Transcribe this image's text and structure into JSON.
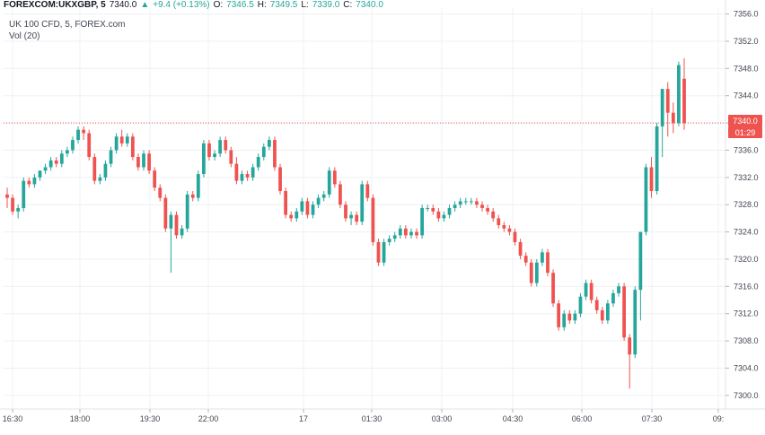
{
  "header": {
    "symbol": "FOREXCOM:UKXGBP, 5",
    "price": "7340.0",
    "change": "+9.4 (+0.13%)",
    "o_label": "O:",
    "o_val": "7346.5",
    "h_label": "H:",
    "h_val": "7349.5",
    "l_label": "L:",
    "l_val": "7339.0",
    "c_label": "C:",
    "c_val": "7340.0",
    "up_color": "#26a69a"
  },
  "legend": {
    "instrument": "UK 100 CFD, 5, FOREX.com",
    "volume": "Vol (20)"
  },
  "last_price_tag": {
    "price": "7340.0",
    "countdown": "01:29",
    "color": "#ef5350"
  },
  "colors": {
    "up": "#26a69a",
    "down": "#ef5350",
    "grid": "#eef0f3",
    "axis": "#e0e3eb"
  },
  "chart_data": {
    "type": "candlestick",
    "y_axis": {
      "range": [
        7298,
        7357
      ],
      "ticks": [
        "7356.0",
        "7352.0",
        "7348.0",
        "7344.0",
        "7340.0",
        "7336.0",
        "7332.0",
        "7328.0",
        "7324.0",
        "7320.0",
        "7316.0",
        "7312.0",
        "7308.0",
        "7304.0",
        "7300.0"
      ]
    },
    "x_axis": {
      "ticks": [
        "16:30",
        "18:00",
        "19:30",
        "22:00",
        "17",
        "01:30",
        "03:00",
        "04:30",
        "06:00",
        "07:30",
        "09:"
      ]
    },
    "candles": [
      [
        7329.5,
        7330.5,
        7327.5,
        7329.0
      ],
      [
        7329.0,
        7329.5,
        7326.5,
        7327.0
      ],
      [
        7327.0,
        7328.0,
        7326.0,
        7327.5
      ],
      [
        7327.5,
        7332.0,
        7327.0,
        7331.5
      ],
      [
        7331.5,
        7332.0,
        7330.5,
        7331.0
      ],
      [
        7331.0,
        7332.5,
        7330.5,
        7332.0
      ],
      [
        7332.0,
        7333.0,
        7331.5,
        7333.0
      ],
      [
        7333.0,
        7334.0,
        7332.5,
        7333.5
      ],
      [
        7333.5,
        7335.0,
        7333.0,
        7334.5
      ],
      [
        7334.5,
        7335.0,
        7333.5,
        7334.0
      ],
      [
        7334.0,
        7336.0,
        7333.5,
        7335.5
      ],
      [
        7335.5,
        7336.5,
        7335.0,
        7336.0
      ],
      [
        7336.0,
        7338.0,
        7335.5,
        7337.5
      ],
      [
        7337.5,
        7339.5,
        7337.0,
        7339.0
      ],
      [
        7339.0,
        7339.5,
        7337.5,
        7338.5
      ],
      [
        7338.5,
        7339.0,
        7334.5,
        7335.0
      ],
      [
        7335.0,
        7335.5,
        7331.0,
        7331.5
      ],
      [
        7331.5,
        7332.5,
        7331.0,
        7332.0
      ],
      [
        7332.0,
        7334.5,
        7331.5,
        7334.0
      ],
      [
        7334.0,
        7336.5,
        7333.5,
        7336.0
      ],
      [
        7336.0,
        7338.5,
        7335.5,
        7338.0
      ],
      [
        7338.0,
        7339.0,
        7336.5,
        7337.0
      ],
      [
        7337.0,
        7338.5,
        7336.5,
        7338.0
      ],
      [
        7338.0,
        7338.5,
        7334.5,
        7335.0
      ],
      [
        7335.0,
        7335.5,
        7333.0,
        7333.5
      ],
      [
        7333.5,
        7336.0,
        7333.0,
        7335.5
      ],
      [
        7335.5,
        7336.0,
        7332.5,
        7333.0
      ],
      [
        7333.0,
        7333.5,
        7330.0,
        7330.5
      ],
      [
        7330.5,
        7331.0,
        7328.5,
        7329.0
      ],
      [
        7329.0,
        7329.5,
        7324.0,
        7324.5
      ],
      [
        7324.5,
        7327.0,
        7318.0,
        7326.5
      ],
      [
        7326.5,
        7327.0,
        7323.0,
        7323.5
      ],
      [
        7323.5,
        7325.0,
        7323.0,
        7324.5
      ],
      [
        7324.5,
        7330.0,
        7324.0,
        7329.5
      ],
      [
        7329.5,
        7330.0,
        7328.5,
        7329.0
      ],
      [
        7329.0,
        7333.0,
        7328.5,
        7332.5
      ],
      [
        7332.5,
        7337.5,
        7332.0,
        7337.0
      ],
      [
        7337.0,
        7337.5,
        7334.5,
        7335.0
      ],
      [
        7335.0,
        7336.0,
        7334.5,
        7335.5
      ],
      [
        7335.5,
        7338.0,
        7335.0,
        7337.5
      ],
      [
        7337.5,
        7338.0,
        7335.5,
        7336.0
      ],
      [
        7336.0,
        7336.5,
        7333.5,
        7334.0
      ],
      [
        7334.0,
        7335.0,
        7331.0,
        7331.5
      ],
      [
        7331.5,
        7333.0,
        7331.0,
        7332.5
      ],
      [
        7332.5,
        7333.0,
        7331.5,
        7332.0
      ],
      [
        7332.0,
        7334.0,
        7331.5,
        7333.5
      ],
      [
        7333.5,
        7335.5,
        7333.0,
        7335.0
      ],
      [
        7335.0,
        7337.0,
        7334.5,
        7336.5
      ],
      [
        7336.5,
        7338.0,
        7336.0,
        7337.5
      ],
      [
        7337.5,
        7338.0,
        7333.0,
        7333.5
      ],
      [
        7333.5,
        7334.0,
        7329.5,
        7330.0
      ],
      [
        7330.0,
        7330.5,
        7326.0,
        7326.5
      ],
      [
        7326.5,
        7327.0,
        7325.5,
        7326.0
      ],
      [
        7326.0,
        7327.5,
        7325.5,
        7327.0
      ],
      [
        7327.0,
        7329.0,
        7326.5,
        7328.5
      ],
      [
        7328.5,
        7329.0,
        7326.0,
        7326.5
      ],
      [
        7326.5,
        7328.5,
        7326.0,
        7328.0
      ],
      [
        7328.0,
        7329.5,
        7327.5,
        7329.0
      ],
      [
        7329.0,
        7330.0,
        7328.5,
        7329.5
      ],
      [
        7329.5,
        7333.5,
        7329.0,
        7333.0
      ],
      [
        7333.0,
        7333.5,
        7330.5,
        7331.0
      ],
      [
        7331.0,
        7331.5,
        7327.5,
        7328.0
      ],
      [
        7328.0,
        7328.5,
        7325.5,
        7326.0
      ],
      [
        7326.0,
        7327.0,
        7325.0,
        7326.5
      ],
      [
        7326.5,
        7327.0,
        7325.0,
        7325.5
      ],
      [
        7325.5,
        7331.5,
        7325.0,
        7331.0
      ],
      [
        7331.0,
        7331.5,
        7328.5,
        7329.0
      ],
      [
        7329.0,
        7329.5,
        7322.0,
        7322.5
      ],
      [
        7322.5,
        7323.0,
        7319.0,
        7319.5
      ],
      [
        7319.5,
        7323.0,
        7319.0,
        7322.5
      ],
      [
        7322.5,
        7323.5,
        7322.0,
        7323.0
      ],
      [
        7323.0,
        7324.0,
        7322.5,
        7323.5
      ],
      [
        7323.5,
        7325.0,
        7323.0,
        7324.5
      ],
      [
        7324.5,
        7325.0,
        7323.0,
        7323.5
      ],
      [
        7323.5,
        7324.5,
        7323.0,
        7324.0
      ],
      [
        7324.0,
        7324.5,
        7323.0,
        7323.5
      ],
      [
        7323.5,
        7328.0,
        7323.0,
        7327.5
      ],
      [
        7327.5,
        7328.0,
        7327.0,
        7327.5
      ],
      [
        7327.5,
        7328.0,
        7326.5,
        7327.0
      ],
      [
        7327.0,
        7327.5,
        7325.5,
        7326.0
      ],
      [
        7326.0,
        7327.0,
        7325.5,
        7326.5
      ],
      [
        7326.5,
        7328.0,
        7326.0,
        7327.5
      ],
      [
        7327.5,
        7328.5,
        7327.0,
        7328.0
      ],
      [
        7328.0,
        7329.0,
        7327.5,
        7328.5
      ],
      [
        7328.5,
        7329.0,
        7328.0,
        7328.5
      ],
      [
        7328.5,
        7329.0,
        7328.0,
        7328.5
      ],
      [
        7328.5,
        7329.0,
        7327.5,
        7328.0
      ],
      [
        7328.0,
        7328.5,
        7327.0,
        7327.5
      ],
      [
        7327.5,
        7328.0,
        7326.5,
        7327.0
      ],
      [
        7327.0,
        7327.5,
        7325.5,
        7326.0
      ],
      [
        7326.0,
        7326.5,
        7324.5,
        7325.0
      ],
      [
        7325.0,
        7325.5,
        7324.0,
        7324.5
      ],
      [
        7324.5,
        7325.0,
        7323.5,
        7324.0
      ],
      [
        7324.0,
        7324.5,
        7322.0,
        7322.5
      ],
      [
        7322.5,
        7323.0,
        7320.0,
        7320.5
      ],
      [
        7320.5,
        7321.0,
        7319.0,
        7319.5
      ],
      [
        7319.5,
        7320.0,
        7316.0,
        7316.5
      ],
      [
        7316.5,
        7320.0,
        7316.0,
        7319.5
      ],
      [
        7319.5,
        7321.5,
        7319.0,
        7321.0
      ],
      [
        7321.0,
        7321.5,
        7317.5,
        7318.0
      ],
      [
        7318.0,
        7318.5,
        7313.0,
        7313.5
      ],
      [
        7313.5,
        7314.0,
        7309.5,
        7310.0
      ],
      [
        7310.0,
        7312.5,
        7309.5,
        7312.0
      ],
      [
        7312.0,
        7312.5,
        7310.5,
        7311.0
      ],
      [
        7311.0,
        7312.5,
        7310.5,
        7312.0
      ],
      [
        7312.0,
        7315.0,
        7311.5,
        7314.5
      ],
      [
        7314.5,
        7317.0,
        7314.0,
        7316.5
      ],
      [
        7316.5,
        7317.0,
        7313.5,
        7314.0
      ],
      [
        7314.0,
        7314.5,
        7312.0,
        7312.5
      ],
      [
        7312.5,
        7313.0,
        7310.5,
        7311.0
      ],
      [
        7311.0,
        7314.0,
        7310.5,
        7313.5
      ],
      [
        7313.5,
        7315.5,
        7313.0,
        7315.0
      ],
      [
        7315.0,
        7316.5,
        7314.5,
        7316.0
      ],
      [
        7316.0,
        7316.5,
        7308.0,
        7308.5
      ],
      [
        7308.5,
        7309.0,
        7301.0,
        7306.0
      ],
      [
        7306.0,
        7316.0,
        7305.5,
        7315.5
      ],
      [
        7315.5,
        7324.0,
        7311.0,
        7324.0
      ],
      [
        7324.0,
        7334.0,
        7323.5,
        7333.5
      ],
      [
        7333.5,
        7335.0,
        7329.0,
        7330.0
      ],
      [
        7330.0,
        7340.0,
        7329.5,
        7339.5
      ],
      [
        7339.5,
        7345.0,
        7335.0,
        7345.0
      ],
      [
        7345.0,
        7346.0,
        7338.0,
        7341.5
      ],
      [
        7341.5,
        7343.0,
        7338.5,
        7340.0
      ],
      [
        7340.0,
        7349.0,
        7339.5,
        7348.5
      ],
      [
        7346.5,
        7349.5,
        7339.0,
        7340.0
      ]
    ]
  }
}
